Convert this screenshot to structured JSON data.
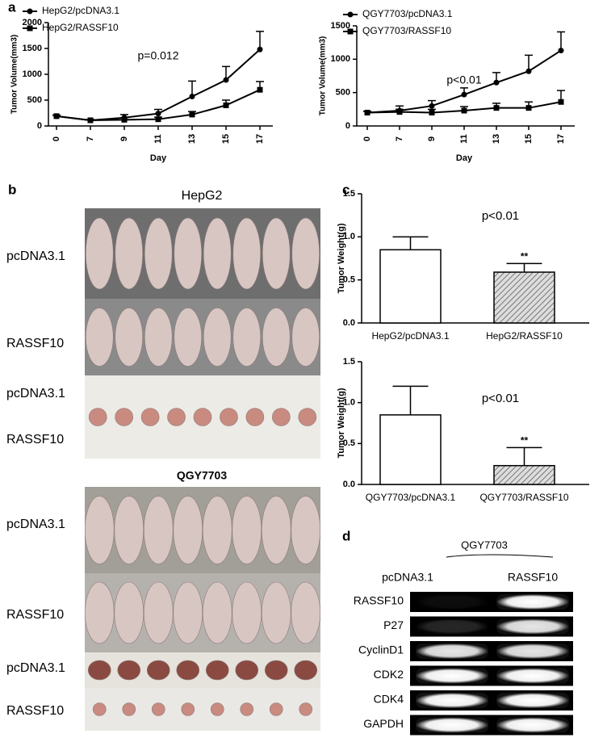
{
  "chart_data": [
    {
      "type": "line",
      "categories": [
        "0",
        "7",
        "9",
        "11",
        "13",
        "15",
        "17"
      ],
      "xlabel": "Day",
      "ylabel": "Tumor Volume(mm3)",
      "ylim": [
        0,
        2000
      ],
      "yticks": [
        0,
        500,
        1000,
        1500,
        2000
      ],
      "annotation": "p=0.012",
      "series": [
        {
          "name": "HepG2/pcDNA3.1",
          "color": "#000000",
          "marker": "circle",
          "values": [
            190,
            110,
            160,
            240,
            570,
            890,
            1480
          ],
          "errors": [
            20,
            15,
            60,
            80,
            300,
            260,
            350
          ]
        },
        {
          "name": "HepG2/RASSF10",
          "color": "#000000",
          "marker": "square",
          "values": [
            190,
            110,
            120,
            130,
            220,
            400,
            700
          ],
          "errors": [
            15,
            10,
            40,
            40,
            60,
            100,
            160
          ]
        }
      ]
    },
    {
      "type": "line",
      "categories": [
        "0",
        "7",
        "9",
        "11",
        "13",
        "15",
        "17"
      ],
      "xlabel": "Day",
      "ylabel": "Tumor Volume(mm3)",
      "ylim": [
        0,
        1500
      ],
      "yticks": [
        0,
        500,
        1000,
        1500
      ],
      "annotation": "p<0.01",
      "series": [
        {
          "name": "QGY7703/pcDNA3.1",
          "color": "#000000",
          "marker": "circle",
          "values": [
            200,
            230,
            300,
            470,
            650,
            820,
            1130
          ],
          "errors": [
            20,
            70,
            80,
            100,
            150,
            240,
            280
          ]
        },
        {
          "name": "QGY7703/RASSF10",
          "color": "#000000",
          "marker": "square",
          "values": [
            200,
            210,
            200,
            230,
            270,
            270,
            360
          ],
          "errors": [
            20,
            40,
            50,
            60,
            70,
            90,
            170
          ]
        }
      ]
    },
    {
      "type": "bar",
      "categories": [
        "HepG2/pcDNA3.1",
        "HepG2/RASSF10"
      ],
      "ylabel": "Tumor Weight(g)",
      "values": [
        0.85,
        0.59
      ],
      "errors": [
        0.15,
        0.1
      ],
      "hatch": [
        false,
        true
      ],
      "significance": [
        null,
        "**"
      ],
      "ylim": [
        0,
        1.5
      ],
      "yticks": [
        {
          "value": 0,
          "label": "0.0"
        },
        {
          "value": 0.5,
          "label": "0.5"
        },
        {
          "value": 1,
          "label": "1.0"
        },
        {
          "value": 1.5,
          "label": "1.5"
        }
      ],
      "annotation": "p<0.01"
    },
    {
      "type": "bar",
      "categories": [
        "QGY7703/pcDNA3.1",
        "QGY7703/RASSF10"
      ],
      "ylabel": "Tumor Weight(g)",
      "values": [
        0.85,
        0.23
      ],
      "errors": [
        0.35,
        0.22
      ],
      "hatch": [
        false,
        true
      ],
      "significance": [
        null,
        "**"
      ],
      "ylim": [
        0,
        1.5
      ],
      "yticks": [
        {
          "value": 0,
          "label": "0.0"
        },
        {
          "value": 0.5,
          "label": "0.5"
        },
        {
          "value": 1,
          "label": "1.0"
        },
        {
          "value": 1.5,
          "label": "1.5"
        }
      ],
      "annotation": "p<0.01"
    }
  ],
  "panels": {
    "a": "a",
    "b": "b",
    "c": "c",
    "d": "d"
  },
  "photos": {
    "hepg2": {
      "title": "HepG2",
      "labels": [
        "pcDNA3.1",
        "RASSF10",
        "pcDNA3.1",
        "RASSF10"
      ]
    },
    "qgy7703": {
      "title": "QGY7703",
      "labels": [
        "pcDNA3.1",
        "RASSF10",
        "pcDNA3.1",
        "RASSF10"
      ]
    }
  },
  "blot": {
    "title": "QGY7703",
    "lanes": [
      "pcDNA3.1",
      "RASSF10"
    ],
    "rows": [
      "RASSF10",
      "P27",
      "CyclinD1",
      "CDK2",
      "CDK4",
      "GAPDH"
    ]
  }
}
